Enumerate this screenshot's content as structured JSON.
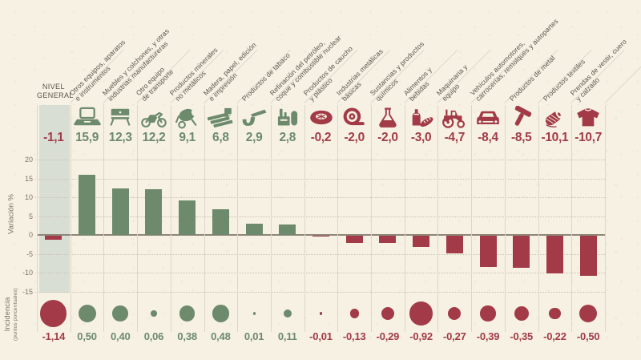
{
  "colors": {
    "positive": "#6d8a6d",
    "negative": "#a23b47",
    "band": "#d9ded5",
    "background": "#f6f1e3"
  },
  "chart_data": {
    "type": "bar",
    "title": "",
    "ylabel": "Variación %",
    "incidence_label": "Incidencia",
    "incidence_sublabel": "(puntos porcentuales)",
    "yticks": [
      20,
      15,
      10,
      5,
      0,
      -5,
      -10,
      -15
    ],
    "ylim": [
      -15,
      22
    ],
    "grid": true,
    "legend": "none",
    "columns": [
      {
        "label": "NIVEL GENERAL",
        "label_lines": "NIVEL\nGENERAL",
        "icon": null,
        "variation": -1.1,
        "variation_label": "-1,1",
        "incidence": -1.14,
        "incidence_label": "-1,14",
        "general": true
      },
      {
        "label": "Otros equipos, aparatos e instrumentos",
        "label_lines": "Otros equipos, aparatos\ne instrumentos",
        "icon": "laptop",
        "variation": 15.9,
        "variation_label": "15,9",
        "incidence": 0.5,
        "incidence_label": "0,50"
      },
      {
        "label": "Muebles y colchones, y otras industrias manufactureras",
        "label_lines": "Muebles y colchones, y otras\nindustrias manufactureras",
        "icon": "furniture",
        "variation": 12.3,
        "variation_label": "12,3",
        "incidence": 0.4,
        "incidence_label": "0,40"
      },
      {
        "label": "Otro equipo de transporte",
        "label_lines": "Otro equipo\nde transporte",
        "icon": "motorcycle",
        "variation": 12.2,
        "variation_label": "12,2",
        "incidence": 0.06,
        "incidence_label": "0,06"
      },
      {
        "label": "Productos minerales no metálicos",
        "label_lines": "Productos minerales\nno metálicos",
        "icon": "cement-mixer",
        "variation": 9.1,
        "variation_label": "9,1",
        "incidence": 0.38,
        "incidence_label": "0,38"
      },
      {
        "label": "Madera, papel, edición e impresión",
        "label_lines": "Madera, papel, edición\ne impresión",
        "icon": "wood-paper",
        "variation": 6.8,
        "variation_label": "6,8",
        "incidence": 0.48,
        "incidence_label": "0,48"
      },
      {
        "label": "Productos de tabaco",
        "label_lines": "Productos de tabaco",
        "icon": "tobacco-pipe",
        "variation": 2.9,
        "variation_label": "2,9",
        "incidence": 0.01,
        "incidence_label": "0,01"
      },
      {
        "label": "Refinación del petróleo, coque y combustible nuclear",
        "label_lines": "Refinación del petróleo,\ncoque y combustible nuclear",
        "icon": "refinery",
        "variation": 2.8,
        "variation_label": "2,8",
        "incidence": 0.11,
        "incidence_label": "0,11"
      },
      {
        "label": "Productos de caucho y plástico",
        "label_lines": "Productos de caucho\ny plástico",
        "icon": "tire",
        "variation": -0.2,
        "variation_label": "-0,2",
        "incidence": -0.01,
        "incidence_label": "-0,01"
      },
      {
        "label": "Industrias metálicas básicas",
        "label_lines": "Industrias metálicas\nbásicas",
        "icon": "metal-coil",
        "variation": -2.0,
        "variation_label": "-2,0",
        "incidence": -0.13,
        "incidence_label": "-0,13"
      },
      {
        "label": "Sustancias y productos químicos",
        "label_lines": "Sustancias y productos\nquímicos",
        "icon": "chemical-flask",
        "variation": -2.0,
        "variation_label": "-2,0",
        "incidence": -0.29,
        "incidence_label": "-0,29"
      },
      {
        "label": "Alimentos y bebidas",
        "label_lines": "Alimentos y\nbebidas",
        "icon": "food-drink",
        "variation": -3.0,
        "variation_label": "-3,0",
        "incidence": -0.92,
        "incidence_label": "-0,92"
      },
      {
        "label": "Maquinaria y equipo",
        "label_lines": "Maquinaria y\nequipo",
        "icon": "tractor",
        "variation": -4.7,
        "variation_label": "-4,7",
        "incidence": -0.27,
        "incidence_label": "-0,27"
      },
      {
        "label": "Vehículos automotores, carrocerías, remolques y autopartes",
        "label_lines": "Vehículos automotores,\ncarrocerías, remolques y autopartes",
        "icon": "car",
        "variation": -8.4,
        "variation_label": "-8,4",
        "incidence": -0.39,
        "incidence_label": "-0,39"
      },
      {
        "label": "Productos de metal",
        "label_lines": "Productos de metal",
        "icon": "hammer",
        "variation": -8.5,
        "variation_label": "-8,5",
        "incidence": -0.35,
        "incidence_label": "-0,35"
      },
      {
        "label": "Productos textiles",
        "label_lines": "Productos textiles",
        "icon": "thread-spool",
        "variation": -10.1,
        "variation_label": "-10,1",
        "incidence": -0.22,
        "incidence_label": "-0,22"
      },
      {
        "label": "Prendas de vestir, cuero y calzado",
        "label_lines": "Prendas de vestir, cuero\ny calzado",
        "icon": "sweater",
        "variation": -10.7,
        "variation_label": "-10,7",
        "incidence": -0.5,
        "incidence_label": "-0,50"
      }
    ]
  }
}
